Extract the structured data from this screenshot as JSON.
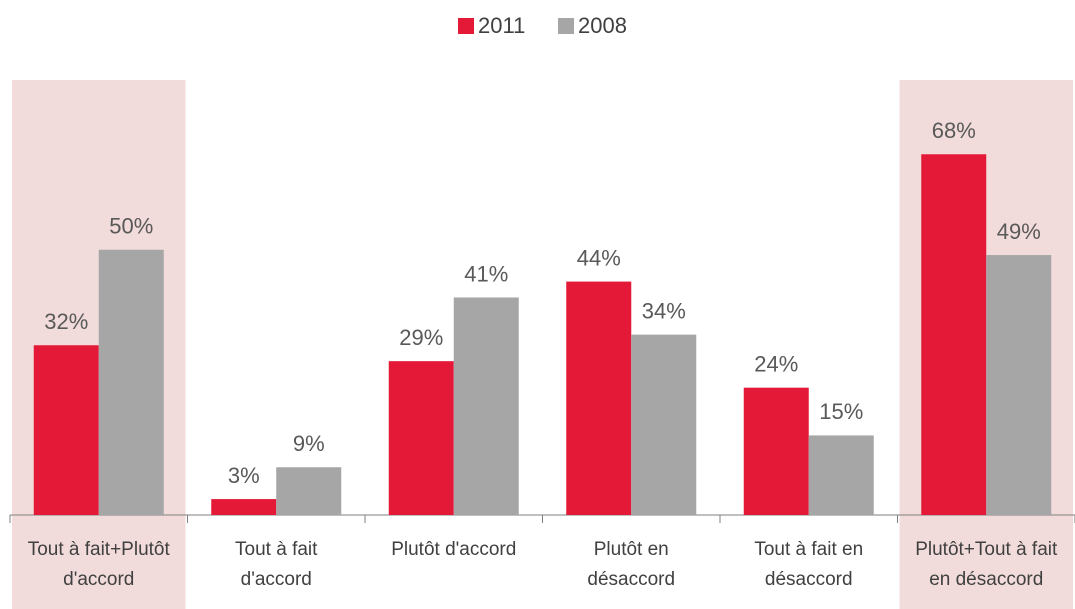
{
  "chart_data": {
    "type": "bar",
    "categories": [
      "Tout à fait+Plutôt\nd'accord",
      "Tout à fait\nd'accord",
      "Plutôt d'accord",
      "Plutôt en\ndésaccord",
      "Tout à fait en\ndésaccord",
      "Plutôt+Tout à fait\nen désaccord"
    ],
    "series": [
      {
        "name": "2011",
        "color": "#e31937",
        "values": [
          32,
          3,
          29,
          44,
          24,
          68
        ],
        "value_labels": [
          "32%",
          "3%",
          "29%",
          "44%",
          "24%",
          "68%"
        ]
      },
      {
        "name": "2008",
        "color": "#a6a6a6",
        "values": [
          50,
          9,
          41,
          34,
          15,
          49
        ],
        "value_labels": [
          "50%",
          "9%",
          "41%",
          "34%",
          "15%",
          "49%"
        ]
      }
    ],
    "ylim": [
      0,
      82
    ],
    "highlight_categories": [
      0,
      5
    ],
    "highlight_color": "#f2dcdb",
    "legend": "top"
  }
}
